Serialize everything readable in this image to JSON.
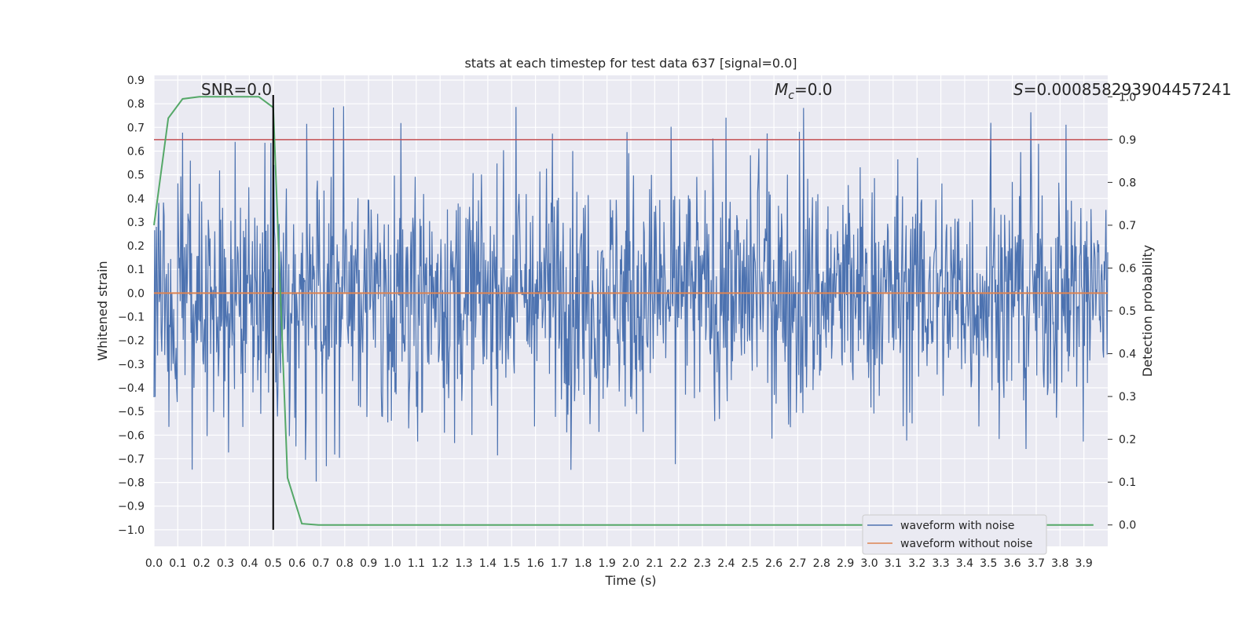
{
  "chart_data": {
    "type": "line",
    "title": "stats at each timestep for test data 637 [signal=0.0]",
    "xlabel": "Time (s)",
    "ylabel": "Whitened strain",
    "ylabel_right": "Detection probability",
    "xlim": [
      0.0,
      4.0
    ],
    "ylim": [
      -1.07,
      0.92
    ],
    "ylim_right": [
      -0.05,
      1.05
    ],
    "x_ticks": [
      "0.0",
      "0.1",
      "0.2",
      "0.3",
      "0.4",
      "0.5",
      "0.6",
      "0.7",
      "0.8",
      "0.9",
      "1.0",
      "1.1",
      "1.2",
      "1.3",
      "1.4",
      "1.5",
      "1.6",
      "1.7",
      "1.8",
      "1.9",
      "2.0",
      "2.1",
      "2.2",
      "2.3",
      "2.4",
      "2.5",
      "2.6",
      "2.7",
      "2.8",
      "2.9",
      "3.0",
      "3.1",
      "3.2",
      "3.3",
      "3.4",
      "3.5",
      "3.6",
      "3.7",
      "3.8",
      "3.9"
    ],
    "y_ticks": [
      "0.9",
      "0.8",
      "0.7",
      "0.6",
      "0.5",
      "0.4",
      "0.3",
      "0.2",
      "0.1",
      "0.0",
      "−0.1",
      "−0.2",
      "−0.3",
      "−0.4",
      "−0.5",
      "−0.6",
      "−0.7",
      "−0.8",
      "−0.9",
      "−1.0"
    ],
    "y_tick_values": [
      0.9,
      0.8,
      0.7,
      0.6,
      0.5,
      0.4,
      0.3,
      0.2,
      0.1,
      0.0,
      -0.1,
      -0.2,
      -0.3,
      -0.4,
      -0.5,
      -0.6,
      -0.7,
      -0.8,
      -0.9,
      -1.0
    ],
    "y_right_ticks": [
      "1.0",
      "0.9",
      "0.8",
      "0.7",
      "0.6",
      "0.5",
      "0.4",
      "0.3",
      "0.2",
      "0.1",
      "0.0"
    ],
    "y_right_tick_values": [
      1.0,
      0.9,
      0.8,
      0.7,
      0.6,
      0.5,
      0.4,
      0.3,
      0.2,
      0.1,
      0.0
    ],
    "annotations": {
      "snr": "SNR=0.0",
      "mc": "=0.0",
      "mc_symbol": "M",
      "mc_sub": "c",
      "s": "=0.000858293904457241",
      "s_symbol": "S"
    },
    "series": [
      {
        "name": "waveform with noise",
        "color": "#4c72b0",
        "kind": "noise",
        "amplitude_typical": 0.45,
        "amplitude_max": 0.82,
        "amplitude_min": -0.97
      },
      {
        "name": "waveform without noise",
        "color": "#dd8452",
        "y": 0.0
      },
      {
        "color": "#55a868",
        "axis": "right",
        "x": [
          0.0,
          0.06,
          0.12,
          0.19,
          0.25,
          0.31,
          0.37,
          0.44,
          0.5,
          0.56,
          0.62,
          0.69,
          0.75,
          3.94
        ],
        "y": [
          0.7,
          0.95,
          0.995,
          1.0,
          1.0,
          1.0,
          1.0,
          1.0,
          0.975,
          0.11,
          0.003,
          0.0,
          0.0,
          0.0
        ]
      }
    ],
    "threshold": {
      "axis": "right",
      "y": 0.9,
      "color": "#c44e52"
    },
    "vertical_line": {
      "x": 0.5,
      "color": "#000000"
    },
    "legend_position": "lower-right",
    "grid": true,
    "background": "#eaeaf2"
  }
}
